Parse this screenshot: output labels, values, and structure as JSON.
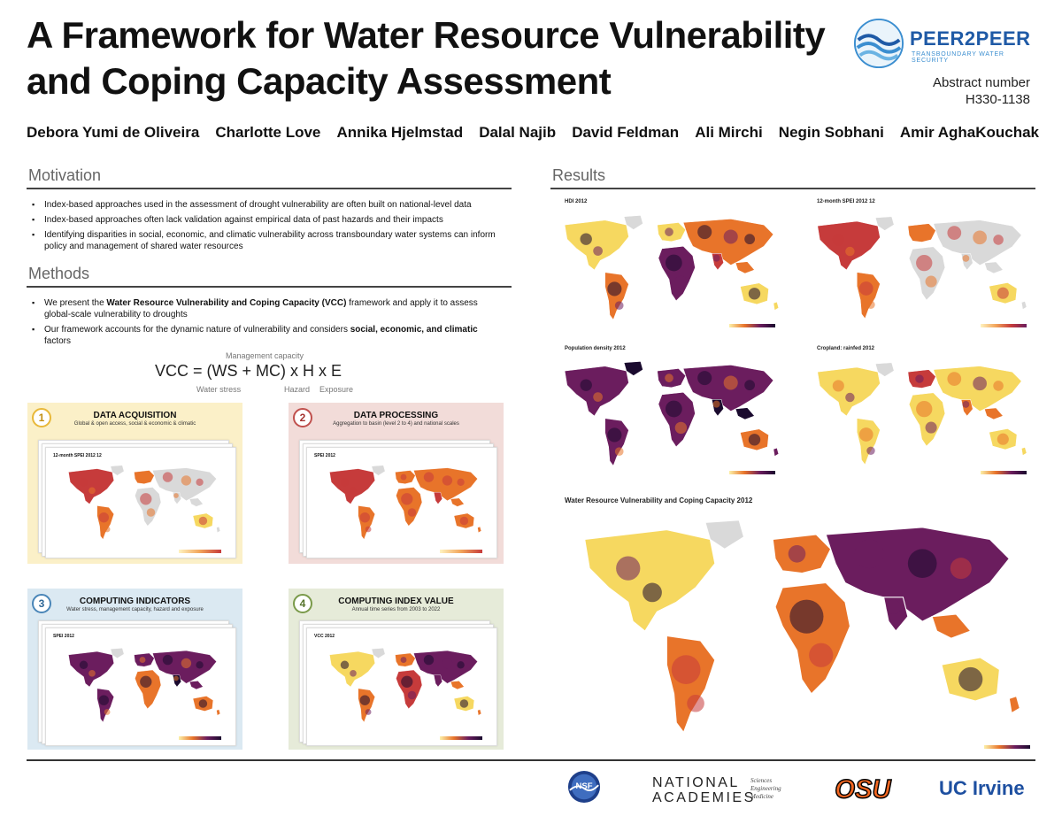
{
  "title": {
    "line1": "A Framework for Water Resource Vulnerability",
    "line2": "and Coping Capacity Assessment"
  },
  "logo": {
    "name": "PEER2PEER",
    "subtitle": "TRANSBOUNDARY WATER SECURITY"
  },
  "abstract": {
    "label": "Abstract number",
    "number": "H330-1138"
  },
  "authors": [
    "Debora Yumi de Oliveira",
    "Charlotte Love",
    "Annika Hjelmstad",
    "Dalal Najib",
    "David Feldman",
    "Ali Mirchi",
    "Negin Sobhani",
    "Amir AghaKouchak"
  ],
  "motivation": {
    "heading": "Motivation",
    "bullets": [
      "Index-based approaches used in the assessment of drought vulnerability are often built on national-level data",
      "Index-based approaches often lack validation against empirical data of past hazards and their impacts",
      "Identifying disparities in social, economic, and climatic vulnerability across transboundary water systems can inform policy and management of shared water resources"
    ]
  },
  "methods": {
    "heading": "Methods",
    "bullet1": {
      "pre": "We present the ",
      "bold": "Water Resource Vulnerability and Coping Capacity (VCC)",
      "post": " framework and apply it to assess global-scale vulnerability to droughts"
    },
    "bullet2": {
      "pre": "Our framework accounts for the dynamic nature of vulnerability and considers ",
      "bold": "social, economic, and climatic",
      "post": " factors"
    },
    "equation": {
      "formula": "VCC = (WS + MC) x H x E",
      "management_capacity": "Management capacity",
      "water_stress": "Water stress",
      "hazard": "Hazard",
      "exposure": "Exposure"
    },
    "steps": [
      {
        "num": "1",
        "title": "DATA ACQUISITION",
        "desc": "Global & open access, social & economic & climatic",
        "map_label": "12-month SPEI 2012 12",
        "bg": "#fbf0c8",
        "accent": "#e8b83a"
      },
      {
        "num": "2",
        "title": "DATA PROCESSING",
        "desc": "Aggregation to basin (level 2 to 4) and national scales",
        "map_label": "SPEI 2012",
        "bg": "#f2dcd9",
        "accent": "#c0504d"
      },
      {
        "num": "3",
        "title": "COMPUTING INDICATORS",
        "desc": "Water stress, management capacity, hazard and exposure",
        "map_label": "SPEI 2012",
        "bg": "#dbe9f2",
        "accent": "#4a86b8"
      },
      {
        "num": "4",
        "title": "COMPUTING INDEX VALUE",
        "desc": "Annual time series from 2003 to 2022",
        "map_label": "VCC 2012",
        "bg": "#e6ebd9",
        "accent": "#7a9a4a"
      }
    ]
  },
  "results": {
    "heading": "Results",
    "maps": [
      {
        "label": "HDI 2012"
      },
      {
        "label": "12-month SPEI 2012 12"
      },
      {
        "label": "Population density 2012"
      },
      {
        "label": "Cropland: rainfed 2012"
      }
    ],
    "big_map_label": "Water Resource Vulnerability and Coping Capacity 2012"
  },
  "sponsors": {
    "nsf": "NSF",
    "nas_line1": "NATIONAL",
    "nas_line2": "ACADEMIES",
    "nas_sub1": "Sciences",
    "nas_sub2": "Engineering",
    "nas_sub3": "Medicine",
    "osu": "OSU",
    "uci": "UC Irvine"
  },
  "colors": {
    "inferno_dark": "#1a0a2e",
    "inferno_purple": "#6b1d5e",
    "inferno_red": "#c63b3b",
    "inferno_orange": "#e8742a",
    "inferno_yellow": "#f6d860",
    "no_data": "#d9d9d9"
  }
}
